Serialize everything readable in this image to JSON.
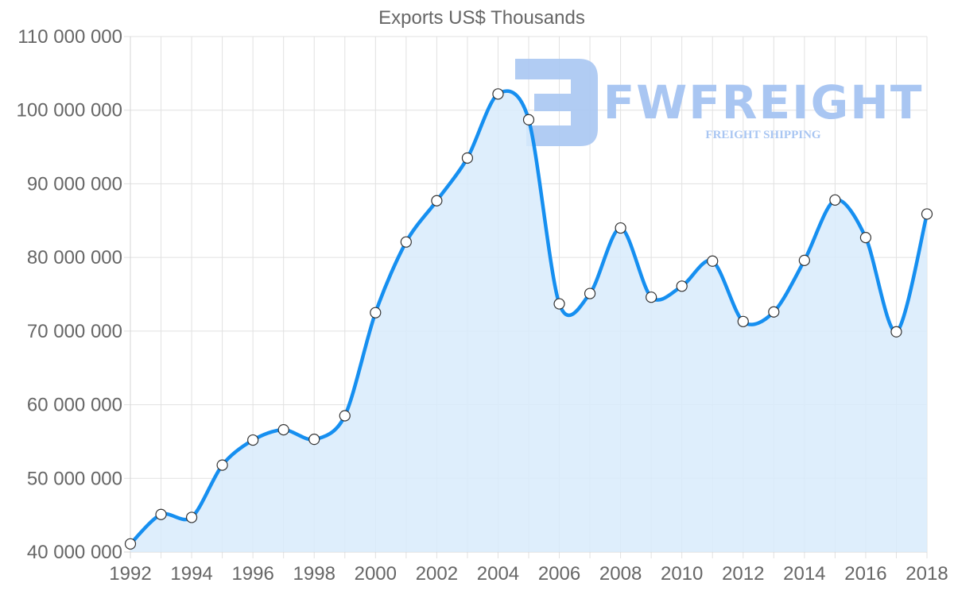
{
  "chart_data": {
    "type": "area",
    "title": "Exports US$ Thousands",
    "xlabel": "",
    "ylabel": "",
    "x": [
      1992,
      1993,
      1994,
      1995,
      1996,
      1997,
      1998,
      1999,
      2000,
      2001,
      2002,
      2003,
      2004,
      2005,
      2006,
      2007,
      2008,
      2009,
      2010,
      2011,
      2012,
      2013,
      2014,
      2015,
      2016,
      2017,
      2018
    ],
    "series": [
      {
        "name": "Exports US$ Thousands",
        "values": [
          41100000,
          45100000,
          44700000,
          51800000,
          55200000,
          56600000,
          55300000,
          58500000,
          72500000,
          82100000,
          87700000,
          93500000,
          102200000,
          98700000,
          73700000,
          75100000,
          84000000,
          74600000,
          76100000,
          79500000,
          71300000,
          72600000,
          79600000,
          87800000,
          82700000,
          69900000,
          85900000
        ]
      }
    ],
    "x_tick_labels": [
      "1992",
      "1994",
      "1996",
      "1998",
      "2000",
      "2002",
      "2004",
      "2006",
      "2008",
      "2010",
      "2012",
      "2014",
      "2016",
      "2018"
    ],
    "y_tick_values": [
      40000000,
      50000000,
      60000000,
      70000000,
      80000000,
      90000000,
      100000000,
      110000000
    ],
    "y_tick_labels": [
      "40 000 000",
      "50 000 000",
      "60 000 000",
      "70 000 000",
      "80 000 000",
      "90 000 000",
      "100 000 000",
      "110 000 000"
    ],
    "ylim": [
      40000000,
      110000000
    ],
    "xlim": [
      1992,
      2018
    ],
    "grid": true,
    "legend": "none",
    "colors": {
      "line": "#168ff0",
      "fill": "#d8ebfc",
      "point_fill": "#ffffff",
      "point_stroke": "#333333",
      "grid": "#e1e1e1",
      "text": "#666666"
    }
  },
  "watermark": {
    "brand": "FWFREIGHT",
    "tagline": "FREIGHT SHIPPING",
    "color": "#a9c6f2"
  }
}
